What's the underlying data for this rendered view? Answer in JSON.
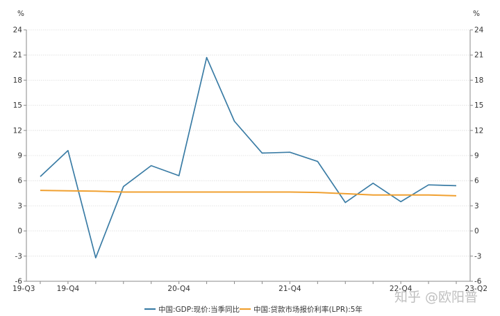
{
  "chart_data": {
    "type": "line",
    "title": "",
    "unit_left": "%",
    "unit_right": "%",
    "ylim": [
      -6,
      24
    ],
    "yticks": [
      -6,
      -3,
      0,
      3,
      6,
      9,
      12,
      15,
      18,
      21,
      24
    ],
    "grid": true,
    "legend_position": "bottom",
    "x_tick_labels": [
      {
        "index": 0,
        "label": "19-Q3"
      },
      {
        "index": 1,
        "label": "19-Q4"
      },
      {
        "index": 5,
        "label": "20-Q4"
      },
      {
        "index": 9,
        "label": "21-Q4"
      },
      {
        "index": 13,
        "label": "22-Q4"
      },
      {
        "index": 15,
        "label": "23-Q2"
      }
    ],
    "x": [
      "19-Q3",
      "19-Q4",
      "20-Q1",
      "20-Q2",
      "20-Q3",
      "20-Q4",
      "21-Q1",
      "21-Q2",
      "21-Q3",
      "21-Q4",
      "22-Q1",
      "22-Q2",
      "22-Q3",
      "22-Q4",
      "23-Q1",
      "23-Q2"
    ],
    "series": [
      {
        "name": "中国:GDP:现价:当季同比",
        "color": "#3a7ca5",
        "values": [
          6.5,
          9.6,
          -3.2,
          5.3,
          7.8,
          6.6,
          20.7,
          13.1,
          9.3,
          9.4,
          8.3,
          3.4,
          5.7,
          3.5,
          5.5,
          5.4
        ]
      },
      {
        "name": "中国:贷款市场报价利率(LPR):5年",
        "color": "#f0a030",
        "values": [
          4.85,
          4.8,
          4.75,
          4.65,
          4.65,
          4.65,
          4.65,
          4.65,
          4.65,
          4.65,
          4.6,
          4.45,
          4.3,
          4.3,
          4.3,
          4.2
        ]
      }
    ]
  },
  "watermark": "知乎 @欧阳普"
}
